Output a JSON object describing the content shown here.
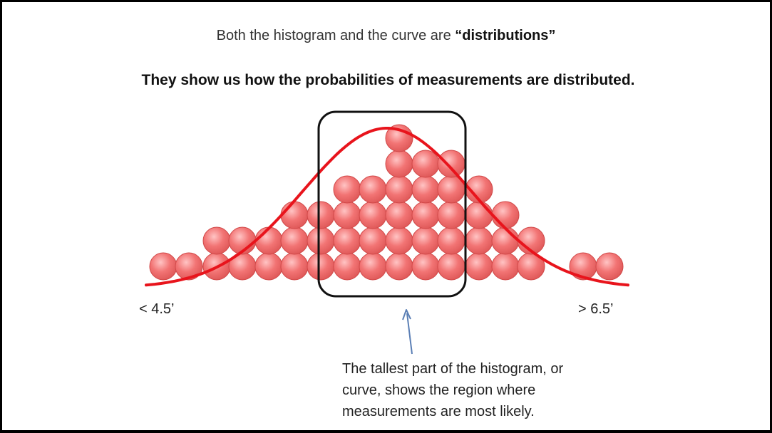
{
  "heading": {
    "prefix": "Both the histogram and the curve are ",
    "bold_part": "“distributions”"
  },
  "subheading": "They show us how the probabilities of measurements are distributed.",
  "axis": {
    "left_label": "< 4.5’",
    "right_label": "> 6.5’"
  },
  "annotation": {
    "lines": [
      "The tallest part of the histogram, or",
      "curve, shows the region where",
      "measurements are most likely."
    ]
  },
  "colors": {
    "ball_fill": "#f07070",
    "ball_edge": "#d04848",
    "curve": "#e8141c",
    "box": "#111111",
    "arrow": "#5b7fb5"
  },
  "chart_data": {
    "type": "histogram",
    "bins_count_per_column": [
      1,
      1,
      2,
      2,
      2,
      3,
      3,
      4,
      4,
      6,
      5,
      5,
      4,
      3,
      2,
      2,
      1,
      1
    ]
  }
}
